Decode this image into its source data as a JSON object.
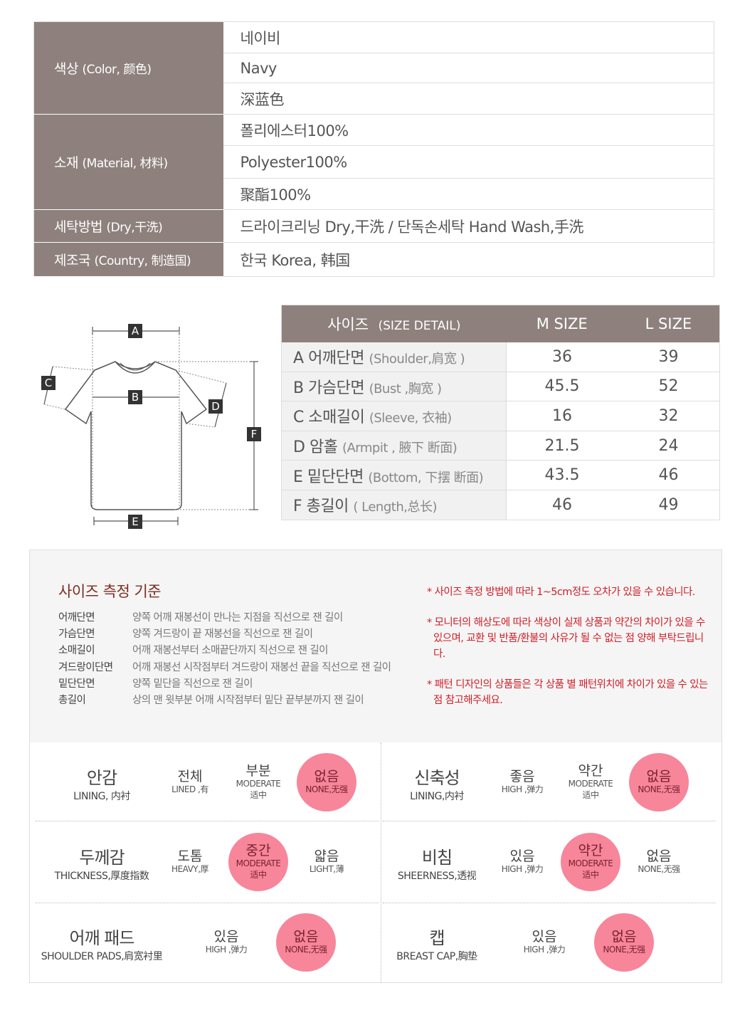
{
  "info": [
    {
      "label": "색상",
      "label_sub": "(Color, 颜色)",
      "values": [
        "네이비",
        "Navy",
        "深蓝色"
      ]
    },
    {
      "label": "소재",
      "label_sub": "(Material, 材料)",
      "values": [
        "폴리에스터100%",
        "Polyester100%",
        "聚酯100%"
      ]
    },
    {
      "label": "세탁방법",
      "label_sub": "(Dry,干洗)",
      "values": [
        "드라이크리닝 Dry,干洗 / 단독손세탁 Hand Wash,手洗"
      ]
    },
    {
      "label": "제조국",
      "label_sub": "(Country, 制造国)",
      "values": [
        "한국 Korea, 韩国"
      ]
    }
  ],
  "diagram": {
    "labels": [
      "A",
      "B",
      "C",
      "D",
      "E",
      "F"
    ]
  },
  "size_table": {
    "header": {
      "label": "사이즈",
      "label_sub": "(SIZE DETAIL)",
      "cols": [
        "M SIZE",
        "L SIZE"
      ]
    },
    "rows": [
      {
        "key": "A",
        "name": "어깨단면",
        "sub": "(Shoulder,肩宽 )",
        "m": "36",
        "l": "39"
      },
      {
        "key": "B",
        "name": "가슴단면",
        "sub": "(Bust ,胸宽 )",
        "m": "45.5",
        "l": "52"
      },
      {
        "key": "C",
        "name": "소매길이",
        "sub": "(Sleeve, 衣袖)",
        "m": "16",
        "l": "32"
      },
      {
        "key": "D",
        "name": "암홀",
        "sub": "(Armpit , 腋下 断面)",
        "m": "21.5",
        "l": "24"
      },
      {
        "key": "E",
        "name": "밑단단면",
        "sub": "(Bottom, 下摆 断面)",
        "m": "43.5",
        "l": "46"
      },
      {
        "key": "F",
        "name": "총길이",
        "sub": "( Length,总长)",
        "m": "46",
        "l": "49"
      }
    ]
  },
  "guide": {
    "title": "사이즈 측정 기준",
    "items": [
      {
        "k": "어깨단면",
        "v": "양쪽 어깨 재봉선이 만나는 지점을 직선으로 잰 길이"
      },
      {
        "k": "가슴단면",
        "v": "양쪽 겨드랑이 끝 재봉선을 직선으로 잰 길이"
      },
      {
        "k": "소매길이",
        "v": "어깨 재봉선부터 소매끝단까지 직선으로 잰 길이"
      },
      {
        "k": "겨드랑이단면",
        "v": "어깨 재봉선 시작점부터 겨드랑이 재봉선 끝을 직선으로 잰 길이"
      },
      {
        "k": "밑단단면",
        "v": "양쪽 밑단을 직선으로 잰 길이"
      },
      {
        "k": "총길이",
        "v": "상의 맨 윗부분 어깨 시작점부터 밑단 끝부분까지 잰 길이"
      }
    ],
    "notes": [
      "* 사이즈 측정 방법에 따라 1~5cm정도 오차가 있을 수 있습니다.",
      "* 모니터의 해상도에 따라 색상이 실제 상품과 약간의 차이가 있을 수 있으며, 교환 및 반품/환불의 사유가 될 수 없는 점 양해 부탁드립니다.",
      "* 패턴 디자인의 상품들은 각 상품 별 패턴위치에 차이가 있을 수 있는 점 참고해주세요."
    ]
  },
  "colors": {
    "header": "#8e817d",
    "selected": "#f7869b",
    "note": "#d0202a",
    "title": "#7a2e1e"
  },
  "attributes": [
    {
      "ko": "안감",
      "en": "LINING, 内衬",
      "options": [
        {
          "ko": "전체",
          "en": "LINED ,有"
        },
        {
          "ko": "부분",
          "en": "MODERATE",
          "cn": "适中"
        },
        {
          "ko": "없음",
          "en": "NONE,无强",
          "selected": true
        }
      ]
    },
    {
      "ko": "신축성",
      "en": "LINING,内衬",
      "options": [
        {
          "ko": "좋음",
          "en": "HIGH ,弹力"
        },
        {
          "ko": "약간",
          "en": "MODERATE",
          "cn": "适中"
        },
        {
          "ko": "없음",
          "en": "NONE,无强",
          "selected": true
        }
      ]
    },
    {
      "ko": "두께감",
      "en": "THICKNESS,厚度指数",
      "options": [
        {
          "ko": "도톰",
          "en": "HEAVY,厚"
        },
        {
          "ko": "중간",
          "en": "MODERATE",
          "cn": "适中",
          "selected": true
        },
        {
          "ko": "얇음",
          "en": "LIGHT,薄"
        }
      ]
    },
    {
      "ko": "비침",
      "en": "SHEERNESS,透视",
      "options": [
        {
          "ko": "있음",
          "en": "HIGH ,弹力"
        },
        {
          "ko": "약간",
          "en": "MODERATE",
          "cn": "适中",
          "selected": true
        },
        {
          "ko": "없음",
          "en": "NONE,无强"
        }
      ]
    },
    {
      "ko": "어깨 패드",
      "en": "SHOULDER PADS,肩宽衬里",
      "options": [
        {
          "ko": "있음",
          "en": "HIGH ,弹力"
        },
        {
          "ko": "없음",
          "en": "NONE,无强",
          "selected": true
        }
      ]
    },
    {
      "ko": "캡",
      "en": "BREAST CAP,胸垫",
      "options": [
        {
          "ko": "있음",
          "en": "HIGH ,弹力"
        },
        {
          "ko": "없음",
          "en": "NONE,无强",
          "selected": true
        }
      ]
    }
  ]
}
